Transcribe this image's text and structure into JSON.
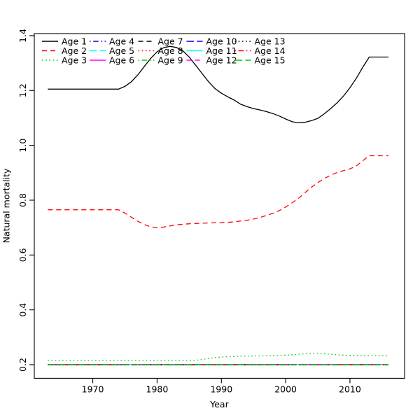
{
  "figure": {
    "background": "#ffffff"
  },
  "chart_data": {
    "type": "line",
    "title": "",
    "xlabel": "Year",
    "ylabel": "Natural mortality",
    "grid": false,
    "legend_position": "top-left",
    "legend_columns": 5,
    "x_ticks": [
      1970,
      1980,
      1990,
      2000,
      2010
    ],
    "y_ticks": [
      0.2,
      0.4,
      0.6,
      0.8,
      1.0,
      1.2,
      1.4
    ],
    "xlim": [
      1960.9,
      2018.5
    ],
    "ylim": [
      0.1505,
      1.4075
    ],
    "years": [
      1963,
      1964,
      1965,
      1966,
      1967,
      1968,
      1969,
      1970,
      1971,
      1972,
      1973,
      1974,
      1975,
      1976,
      1977,
      1978,
      1979,
      1980,
      1981,
      1982,
      1983,
      1984,
      1985,
      1986,
      1987,
      1988,
      1989,
      1990,
      1991,
      1992,
      1993,
      1994,
      1995,
      1996,
      1997,
      1998,
      1999,
      2000,
      2001,
      2002,
      2003,
      2004,
      2005,
      2006,
      2007,
      2008,
      2009,
      2010,
      2011,
      2012,
      2013,
      2014,
      2015,
      2016
    ],
    "series": [
      {
        "name": "Age 1",
        "color": "#000000",
        "linetype": "solid",
        "values": [
          1.205,
          1.205,
          1.205,
          1.205,
          1.205,
          1.205,
          1.205,
          1.205,
          1.205,
          1.205,
          1.205,
          1.205,
          1.215,
          1.232,
          1.257,
          1.287,
          1.317,
          1.341,
          1.356,
          1.361,
          1.357,
          1.345,
          1.322,
          1.292,
          1.262,
          1.232,
          1.207,
          1.19,
          1.177,
          1.165,
          1.15,
          1.141,
          1.134,
          1.129,
          1.123,
          1.116,
          1.107,
          1.096,
          1.086,
          1.082,
          1.084,
          1.09,
          1.098,
          1.115,
          1.134,
          1.155,
          1.18,
          1.21,
          1.245,
          1.285,
          1.322,
          1.322,
          1.322,
          1.322
        ]
      },
      {
        "name": "Age 2",
        "color": "#FF0000",
        "linetype": "dashed",
        "values": [
          0.765,
          0.765,
          0.765,
          0.765,
          0.765,
          0.765,
          0.765,
          0.765,
          0.765,
          0.765,
          0.765,
          0.765,
          0.753,
          0.738,
          0.723,
          0.711,
          0.703,
          0.7,
          0.702,
          0.706,
          0.71,
          0.712,
          0.714,
          0.715,
          0.716,
          0.717,
          0.718,
          0.718,
          0.719,
          0.721,
          0.724,
          0.727,
          0.731,
          0.737,
          0.744,
          0.752,
          0.762,
          0.775,
          0.79,
          0.807,
          0.827,
          0.847,
          0.864,
          0.879,
          0.891,
          0.901,
          0.908,
          0.914,
          0.925,
          0.944,
          0.962,
          0.962,
          0.962,
          0.962
        ]
      },
      {
        "name": "Age 3",
        "color": "#00CD00",
        "linetype": "dotted",
        "values": [
          0.215,
          0.215,
          0.215,
          0.215,
          0.215,
          0.215,
          0.215,
          0.215,
          0.215,
          0.215,
          0.215,
          0.215,
          0.215,
          0.215,
          0.215,
          0.215,
          0.215,
          0.215,
          0.215,
          0.215,
          0.215,
          0.215,
          0.215,
          0.216,
          0.219,
          0.223,
          0.226,
          0.228,
          0.229,
          0.23,
          0.231,
          0.231,
          0.232,
          0.232,
          0.233,
          0.233,
          0.234,
          0.235,
          0.236,
          0.238,
          0.24,
          0.241,
          0.241,
          0.24,
          0.238,
          0.236,
          0.235,
          0.234,
          0.234,
          0.233,
          0.233,
          0.233,
          0.233,
          0.233
        ]
      },
      {
        "name": "Age 4",
        "color": "#0000FF",
        "linetype": "dotdash",
        "constant": 0.2
      },
      {
        "name": "Age 5",
        "color": "#00FFFF",
        "linetype": "longdash",
        "constant": 0.2
      },
      {
        "name": "Age 6",
        "color": "#FF00FF",
        "linetype": "solid",
        "constant": 0.2
      },
      {
        "name": "Age 7",
        "color": "#000000",
        "linetype": "dashed",
        "constant": 0.2
      },
      {
        "name": "Age 8",
        "color": "#FF0000",
        "linetype": "dotted",
        "constant": 0.2
      },
      {
        "name": "Age 9",
        "color": "#00CD00",
        "linetype": "dotdash",
        "constant": 0.2
      },
      {
        "name": "Age 10",
        "color": "#0000FF",
        "linetype": "longdash",
        "constant": 0.2
      },
      {
        "name": "Age 11",
        "color": "#00FFFF",
        "linetype": "solid",
        "constant": 0.2
      },
      {
        "name": "Age 12",
        "color": "#FF00FF",
        "linetype": "dashed",
        "constant": 0.2
      },
      {
        "name": "Age 13",
        "color": "#000000",
        "linetype": "dotted",
        "constant": 0.2
      },
      {
        "name": "Age 14",
        "color": "#FF0000",
        "linetype": "dotdash",
        "constant": 0.2
      },
      {
        "name": "Age 15",
        "color": "#00CD00",
        "linetype": "longdash",
        "constant": 0.2
      }
    ]
  }
}
